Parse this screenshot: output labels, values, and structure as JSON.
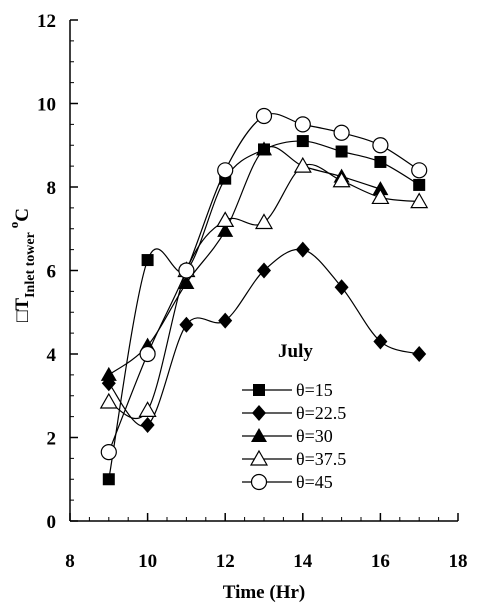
{
  "chart_data": {
    "type": "line",
    "xlabel": "Time (Hr)",
    "ylabel": {
      "prefix": "□T",
      "subscript": "Inlet tower",
      "unit_sup": "o",
      "unit": "C"
    },
    "xlim": [
      8,
      18
    ],
    "ylim": [
      0,
      12
    ],
    "xticks": [
      8,
      10,
      12,
      14,
      16,
      18
    ],
    "yticks": [
      0,
      2,
      4,
      6,
      8,
      10,
      12
    ],
    "xminor_step": 0.5,
    "yminor_step": 0.5,
    "grid": false,
    "legend_title": "July",
    "legend_position": "lower-right",
    "series": [
      {
        "name": "θ=15",
        "marker": "square-filled",
        "x": [
          9,
          10,
          11,
          12,
          13,
          14,
          15,
          16,
          17
        ],
        "y": [
          1.0,
          6.25,
          6.0,
          8.2,
          8.9,
          9.1,
          8.85,
          8.6,
          8.05
        ]
      },
      {
        "name": "θ=22.5",
        "marker": "diamond-filled",
        "x": [
          9,
          10,
          11,
          12,
          13,
          14,
          15,
          16,
          17
        ],
        "y": [
          3.3,
          2.3,
          4.7,
          4.8,
          6.0,
          6.5,
          5.6,
          4.3,
          4.0
        ]
      },
      {
        "name": "θ=30",
        "marker": "triangle-filled",
        "x": [
          9,
          10,
          11,
          12,
          13,
          14,
          15,
          16,
          17
        ],
        "y": [
          3.5,
          4.2,
          5.7,
          6.95,
          8.9,
          8.5,
          8.25,
          7.95,
          null
        ]
      },
      {
        "name": "θ=37.5",
        "marker": "triangle-open",
        "x": [
          9,
          10,
          11,
          12,
          13,
          14,
          15,
          16,
          17
        ],
        "y": [
          2.85,
          2.65,
          6.0,
          7.2,
          7.15,
          8.5,
          8.15,
          7.75,
          7.65
        ]
      },
      {
        "name": "θ=45",
        "marker": "circle-open",
        "x": [
          9,
          10,
          11,
          12,
          13,
          14,
          15,
          16,
          17
        ],
        "y": [
          1.65,
          4.0,
          6.0,
          8.4,
          9.7,
          9.5,
          9.3,
          9.0,
          8.4
        ]
      }
    ]
  }
}
